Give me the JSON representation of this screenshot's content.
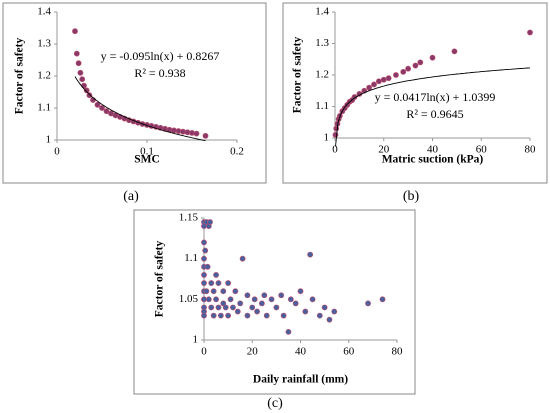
{
  "chart_data": [
    {
      "type": "scatter",
      "label": "(a)",
      "xlabel": "SMC",
      "ylabel": "Factor of safety",
      "color": "#8a3a6a",
      "x": [
        0.02,
        0.022,
        0.024,
        0.026,
        0.028,
        0.03,
        0.033,
        0.036,
        0.04,
        0.045,
        0.05,
        0.055,
        0.06,
        0.065,
        0.07,
        0.075,
        0.08,
        0.085,
        0.09,
        0.095,
        0.1,
        0.105,
        0.11,
        0.115,
        0.12,
        0.125,
        0.13,
        0.135,
        0.14,
        0.145,
        0.15,
        0.155,
        0.165
      ],
      "values": [
        1.34,
        1.27,
        1.24,
        1.21,
        1.19,
        1.17,
        1.155,
        1.14,
        1.125,
        1.11,
        1.1,
        1.09,
        1.083,
        1.077,
        1.072,
        1.067,
        1.062,
        1.058,
        1.054,
        1.05,
        1.047,
        1.044,
        1.041,
        1.038,
        1.035,
        1.032,
        1.03,
        1.028,
        1.026,
        1.024,
        1.022,
        1.02,
        1.013
      ],
      "xlim": [
        0,
        0.2
      ],
      "xticks": [
        0,
        0.1,
        0.2
      ],
      "ylim": [
        1,
        1.4
      ],
      "yticks": [
        1,
        1.1,
        1.2,
        1.3,
        1.4
      ],
      "trendline": {
        "equation": "y = -0.095ln(x) + 0.8267",
        "r2": "R² = 0.938",
        "slope": -0.095,
        "intercept": 0.8267
      }
    },
    {
      "type": "scatter",
      "label": "(b)",
      "xlabel": "Matric suction (kPa)",
      "ylabel": "Factor of safety",
      "color": "#8a3a6a",
      "x": [
        0.2,
        0.5,
        1,
        1.5,
        2,
        3,
        4,
        5,
        6,
        7,
        8,
        10,
        12,
        14,
        16,
        18,
        20,
        22,
        25,
        28,
        30,
        33,
        35,
        40,
        49,
        80
      ],
      "values": [
        1.01,
        1.03,
        1.045,
        1.06,
        1.07,
        1.085,
        1.095,
        1.105,
        1.115,
        1.12,
        1.13,
        1.14,
        1.15,
        1.16,
        1.17,
        1.18,
        1.185,
        1.19,
        1.2,
        1.21,
        1.22,
        1.23,
        1.24,
        1.255,
        1.275,
        1.335
      ],
      "xlim": [
        0,
        80
      ],
      "xticks": [
        0,
        20,
        40,
        60,
        80
      ],
      "ylim": [
        1,
        1.4
      ],
      "yticks": [
        1,
        1.1,
        1.2,
        1.3,
        1.4
      ],
      "trendline": {
        "equation": "y = 0.0417ln(x) + 1.0399",
        "r2": "R² = 0.9645",
        "slope": 0.0417,
        "intercept": 1.0399
      }
    },
    {
      "type": "scatter",
      "label": "(c)",
      "xlabel": "Daily rainfall (mm)",
      "ylabel": "Factor of safety",
      "color": "#4a5f9e",
      "x": [
        0,
        0,
        0,
        0,
        0,
        0,
        0,
        0,
        0,
        0,
        0,
        0,
        0.5,
        1,
        1,
        1.5,
        2,
        2,
        2.5,
        3,
        3,
        4,
        4,
        5,
        5,
        6,
        6,
        7,
        8,
        8,
        9,
        10,
        10,
        11,
        12,
        13,
        14,
        15,
        16,
        18,
        18,
        20,
        21,
        22,
        24,
        25,
        26,
        28,
        30,
        32,
        33,
        35,
        36,
        38,
        40,
        42,
        44,
        45,
        48,
        50,
        52,
        54,
        68,
        74
      ],
      "values": [
        1.145,
        1.14,
        1.12,
        1.1,
        1.09,
        1.08,
        1.07,
        1.06,
        1.05,
        1.04,
        1.035,
        1.03,
        1.11,
        1.145,
        1.06,
        1.09,
        1.14,
        1.05,
        1.145,
        1.04,
        1.07,
        1.03,
        1.06,
        1.05,
        1.08,
        1.04,
        1.07,
        1.03,
        1.06,
        1.045,
        1.04,
        1.07,
        1.03,
        1.05,
        1.04,
        1.06,
        1.035,
        1.045,
        1.1,
        1.03,
        1.055,
        1.04,
        1.05,
        1.035,
        1.045,
        1.055,
        1.03,
        1.05,
        1.04,
        1.055,
        1.03,
        1.01,
        1.05,
        1.045,
        1.06,
        1.035,
        1.105,
        1.05,
        1.03,
        1.04,
        1.025,
        1.035,
        1.045,
        1.05
      ],
      "xlim": [
        0,
        80
      ],
      "xticks": [
        0,
        20,
        40,
        60,
        80
      ],
      "ylim": [
        1,
        1.15
      ],
      "yticks": [
        1,
        1.05,
        1.1,
        1.15
      ]
    }
  ]
}
